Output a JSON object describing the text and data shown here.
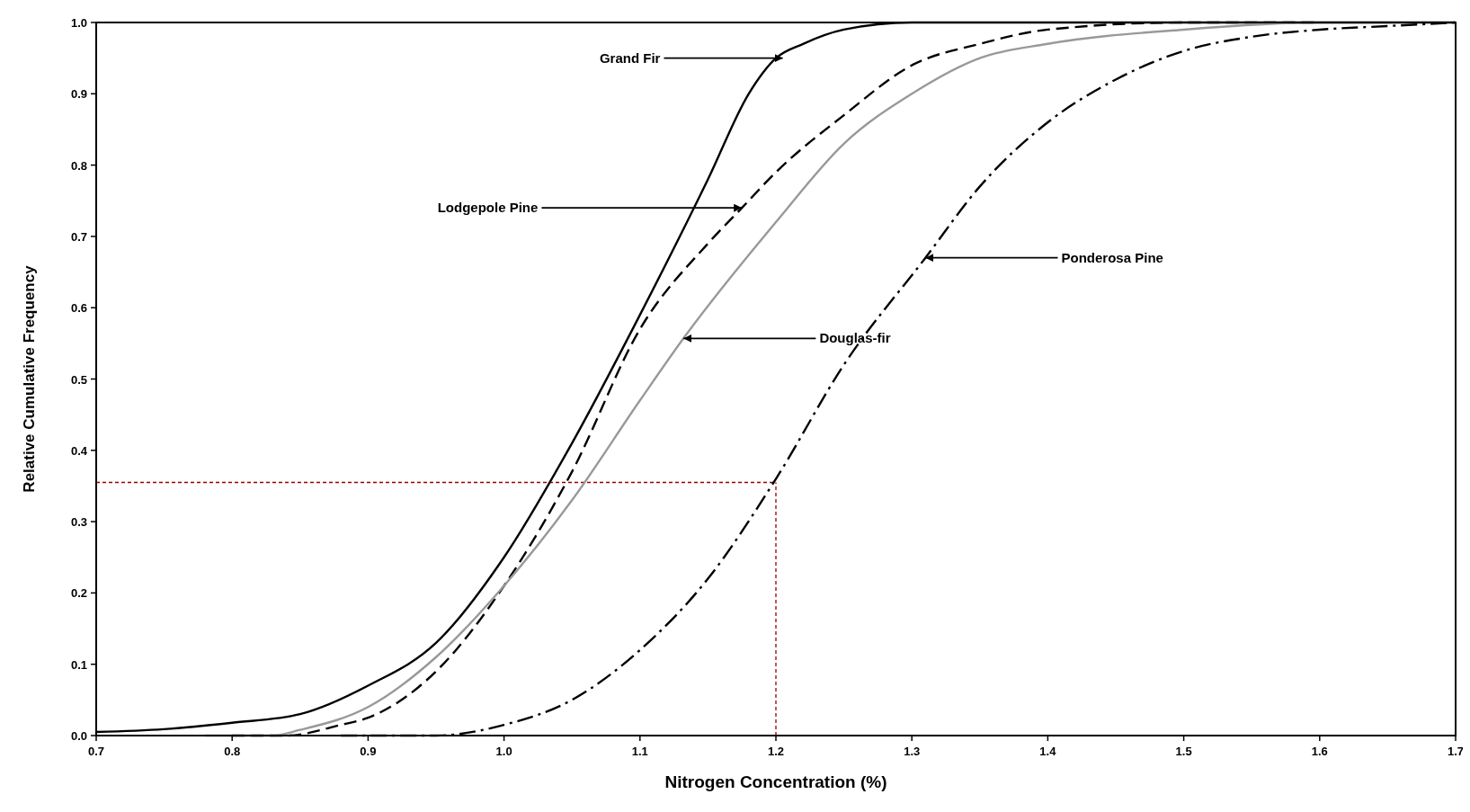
{
  "chart_data": {
    "type": "line",
    "xlabel": "Nitrogen Concentration (%)",
    "ylabel": "Relative Cumulative Frequency",
    "xlim": [
      0.7,
      1.7
    ],
    "xticks": [
      {
        "value": 0.7,
        "label": "0.7"
      },
      {
        "value": 0.8,
        "label": "0.8"
      },
      {
        "value": 0.9,
        "label": "0.9"
      },
      {
        "value": 1.0,
        "label": "1.0"
      },
      {
        "value": 1.1,
        "label": "1.1"
      },
      {
        "value": 1.2,
        "label": "1.2"
      },
      {
        "value": 1.3,
        "label": "1.3"
      },
      {
        "value": 1.4,
        "label": "1.4"
      },
      {
        "value": 1.5,
        "label": "1.5"
      },
      {
        "value": 1.6,
        "label": "1.6"
      },
      {
        "value": 1.7,
        "label": "1.7"
      }
    ],
    "ylim": [
      0,
      1
    ],
    "yticks": [
      {
        "value": 0,
        "label": "0.0"
      },
      {
        "value": 0.1,
        "label": "0.1"
      },
      {
        "value": 0.2,
        "label": "0.2"
      },
      {
        "value": 0.3,
        "label": "0.3"
      },
      {
        "value": 0.4,
        "label": "0.4"
      },
      {
        "value": 0.5,
        "label": "0.5"
      },
      {
        "value": 0.6,
        "label": "0.6"
      },
      {
        "value": 0.7,
        "label": "0.7"
      },
      {
        "value": 0.8,
        "label": "0.8"
      },
      {
        "value": 0.9,
        "label": "0.9"
      },
      {
        "value": 1.0,
        "label": "1.0"
      }
    ],
    "grid": false,
    "marker": "none",
    "series": [
      {
        "color": "#000000",
        "line_style": "solid",
        "x": [
          0.7,
          0.75,
          0.8,
          0.85,
          0.9,
          0.95,
          1.0,
          1.05,
          1.1,
          1.15,
          1.18,
          1.2,
          1.22,
          1.25,
          1.3,
          1.4,
          1.5,
          1.6,
          1.7
        ],
        "values": [
          0.005,
          0.009,
          0.018,
          0.03,
          0.07,
          0.13,
          0.25,
          0.41,
          0.59,
          0.78,
          0.9,
          0.95,
          0.97,
          0.99,
          1.0,
          1.0,
          1.0,
          1.0,
          1.0
        ]
      },
      {
        "color": "#000000",
        "line_style": "dashed",
        "x": [
          0.8,
          0.84,
          0.88,
          0.9,
          0.95,
          1.0,
          1.05,
          1.1,
          1.15,
          1.175,
          1.2,
          1.25,
          1.3,
          1.35,
          1.4,
          1.5,
          1.6
        ],
        "values": [
          0,
          0,
          0.015,
          0.025,
          0.09,
          0.21,
          0.37,
          0.57,
          0.69,
          0.74,
          0.79,
          0.87,
          0.94,
          0.97,
          0.99,
          1.0,
          1.0
        ]
      },
      {
        "color": "#999999",
        "line_style": "solid",
        "x": [
          0.78,
          0.83,
          0.85,
          0.9,
          0.95,
          1.0,
          1.05,
          1.1,
          1.132,
          1.2,
          1.25,
          1.3,
          1.35,
          1.4,
          1.5,
          1.6,
          1.65
        ],
        "values": [
          0,
          0,
          0.008,
          0.04,
          0.11,
          0.21,
          0.33,
          0.47,
          0.557,
          0.72,
          0.83,
          0.9,
          0.95,
          0.97,
          0.99,
          1.0,
          1.0
        ]
      },
      {
        "color": "#000000",
        "line_style": "dashed",
        "x": [
          0.88,
          0.9,
          0.95,
          1.0,
          1.05,
          1.1,
          1.15,
          1.2,
          1.25,
          1.31,
          1.35,
          1.4,
          1.45,
          1.5,
          1.55,
          1.6,
          1.65,
          1.7
        ],
        "values": [
          0,
          0,
          0,
          0.015,
          0.05,
          0.12,
          0.22,
          0.36,
          0.52,
          0.67,
          0.77,
          0.86,
          0.92,
          0.96,
          0.98,
          0.99,
          0.995,
          1.0
        ]
      }
    ],
    "annotations": [
      {
        "text": "Grand Fir",
        "x": 1.205,
        "y": 0.95
      },
      {
        "text": "Lodgepole Pine",
        "x": 1.175,
        "y": 0.74
      },
      {
        "text": "Ponderosa Pine",
        "x": 1.31,
        "y": 0.67
      },
      {
        "text": "Douglas-fir",
        "x": 1.132,
        "y": 0.557
      }
    ],
    "ref_lines": [
      {
        "axis": "x",
        "value": 1.2,
        "color": "#990000",
        "line_style": "dashed"
      },
      {
        "axis": "y",
        "value": 0.355,
        "color": "#990000",
        "line_style": "dashed"
      }
    ]
  }
}
